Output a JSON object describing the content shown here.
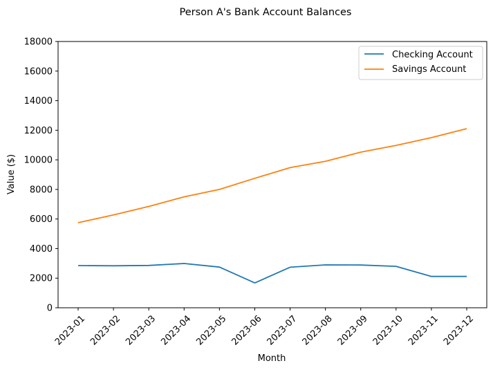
{
  "chart_data": {
    "type": "line",
    "title": "Person A's Bank Account Balances",
    "xlabel": "Month",
    "ylabel": "Value ($)",
    "categories": [
      "2023-01",
      "2023-02",
      "2023-03",
      "2023-04",
      "2023-05",
      "2023-06",
      "2023-07",
      "2023-08",
      "2023-09",
      "2023-10",
      "2023-11",
      "2023-12"
    ],
    "ylim": [
      0,
      18000
    ],
    "yticks": [
      "0",
      "2000",
      "4000",
      "6000",
      "8000",
      "10000",
      "12000",
      "14000",
      "16000",
      "18000"
    ],
    "grid": false,
    "legend_position": "top-right",
    "series": [
      {
        "name": "Checking Account",
        "color": "#1f77b4",
        "values": [
          2850,
          2840,
          2860,
          2990,
          2750,
          1680,
          2740,
          2900,
          2890,
          2800,
          2120,
          2120
        ]
      },
      {
        "name": "Savings Account",
        "color": "#ff7f0e",
        "values": [
          5750,
          6280,
          6850,
          7500,
          8000,
          8750,
          9470,
          9900,
          10520,
          10980,
          11500,
          12110
        ]
      }
    ]
  }
}
